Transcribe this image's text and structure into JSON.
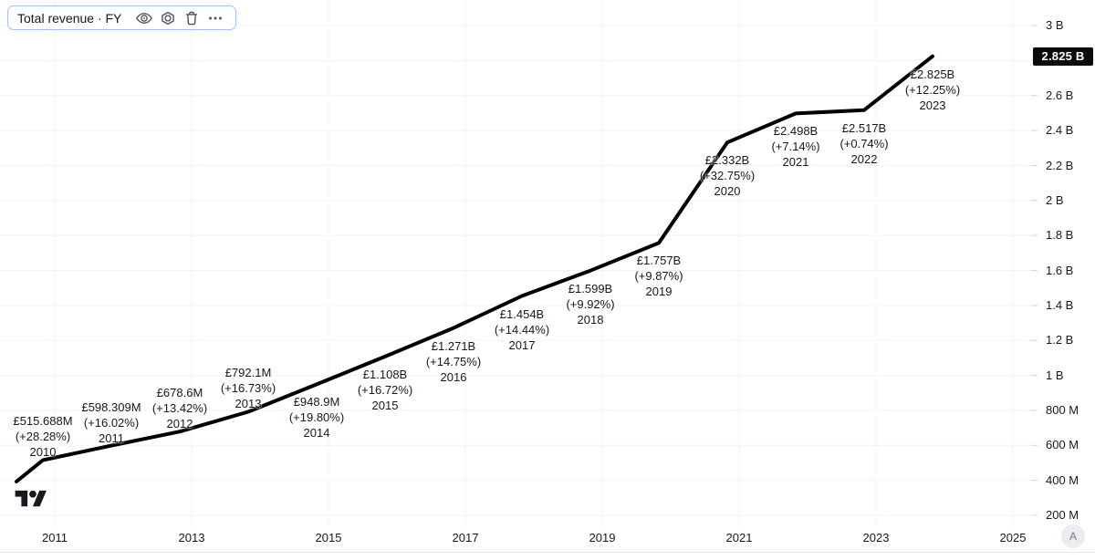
{
  "legend": {
    "title": "Total revenue · FY",
    "icons": [
      "eye-icon",
      "settings-icon",
      "trash-icon",
      "more-icon"
    ]
  },
  "price_badge": {
    "text": "2.825 B"
  },
  "footer": {
    "auto_scale_label": "A"
  },
  "colors": {
    "line": "#000000",
    "grid": "#f0f3fa",
    "axis_text": "#131722",
    "label_text": "#131722",
    "legend_border": "#a9bcfa",
    "icon": "#50535e",
    "badge_bg": "#0b0b0d",
    "badge_text": "#ffffff",
    "logo": "#16191f"
  },
  "chart_data": {
    "type": "line",
    "title": "Total revenue · FY",
    "currency": "GBP",
    "legend_position": "top-left",
    "grid": true,
    "y_axis": {
      "side": "right",
      "range_m": [
        200,
        3000
      ],
      "grid_step_m": 200,
      "ticks": [
        {
          "m": 3000,
          "label": "3 B"
        },
        {
          "m": 2600,
          "label": "2.6 B"
        },
        {
          "m": 2400,
          "label": "2.4 B"
        },
        {
          "m": 2200,
          "label": "2.2 B"
        },
        {
          "m": 2000,
          "label": "2 B"
        },
        {
          "m": 1800,
          "label": "1.8 B"
        },
        {
          "m": 1600,
          "label": "1.6 B"
        },
        {
          "m": 1400,
          "label": "1.4 B"
        },
        {
          "m": 1200,
          "label": "1.2 B"
        },
        {
          "m": 1000,
          "label": "1 B"
        },
        {
          "m": 800,
          "label": "800 M"
        },
        {
          "m": 600,
          "label": "600 M"
        },
        {
          "m": 400,
          "label": "400 M"
        },
        {
          "m": 200,
          "label": "200 M"
        }
      ],
      "last_price_m": 2825
    },
    "x_axis": {
      "ticks": [
        {
          "year": 2011,
          "label": "2011"
        },
        {
          "year": 2013,
          "label": "2013"
        },
        {
          "year": 2015,
          "label": "2015"
        },
        {
          "year": 2017,
          "label": "2017"
        },
        {
          "year": 2019,
          "label": "2019"
        },
        {
          "year": 2021,
          "label": "2021"
        },
        {
          "year": 2023,
          "label": "2023"
        },
        {
          "year": 2025,
          "label": "2025"
        }
      ]
    },
    "series": [
      {
        "name": "Total revenue",
        "points": [
          {
            "year": 2010,
            "value_m": 515.688,
            "value_label": "£515.688M",
            "pct_label": "(+28.28%)",
            "year_label": "2010",
            "label_side": "above"
          },
          {
            "year": 2011,
            "value_m": 598.309,
            "value_label": "£598.309M",
            "pct_label": "(+16.02%)",
            "year_label": "2011",
            "label_side": "above"
          },
          {
            "year": 2012,
            "value_m": 678.6,
            "value_label": "£678.6M",
            "pct_label": "(+13.42%)",
            "year_label": "2012",
            "label_side": "above"
          },
          {
            "year": 2013,
            "value_m": 792.1,
            "value_label": "£792.1M",
            "pct_label": "(+16.73%)",
            "year_label": "2013",
            "label_side": "above"
          },
          {
            "year": 2014,
            "value_m": 948.9,
            "value_label": "£948.9M",
            "pct_label": "(+19.80%)",
            "year_label": "2014",
            "label_side": "below"
          },
          {
            "year": 2015,
            "value_m": 1108,
            "value_label": "£1.108B",
            "pct_label": "(+16.72%)",
            "year_label": "2015",
            "label_side": "below"
          },
          {
            "year": 2016,
            "value_m": 1271,
            "value_label": "£1.271B",
            "pct_label": "(+14.75%)",
            "year_label": "2016",
            "label_side": "below"
          },
          {
            "year": 2017,
            "value_m": 1454,
            "value_label": "£1.454B",
            "pct_label": "(+14.44%)",
            "year_label": "2017",
            "label_side": "below"
          },
          {
            "year": 2018,
            "value_m": 1599,
            "value_label": "£1.599B",
            "pct_label": "(+9.92%)",
            "year_label": "2018",
            "label_side": "below"
          },
          {
            "year": 2019,
            "value_m": 1757,
            "value_label": "£1.757B",
            "pct_label": "(+9.87%)",
            "year_label": "2019",
            "label_side": "below"
          },
          {
            "year": 2020,
            "value_m": 2332,
            "value_label": "£2.332B",
            "pct_label": "(+32.75%)",
            "year_label": "2020",
            "label_side": "below"
          },
          {
            "year": 2021,
            "value_m": 2498,
            "value_label": "£2.498B",
            "pct_label": "(+7.14%)",
            "year_label": "2021",
            "label_side": "below"
          },
          {
            "year": 2022,
            "value_m": 2517,
            "value_label": "£2.517B",
            "pct_label": "(+0.74%)",
            "year_label": "2022",
            "label_side": "below"
          },
          {
            "year": 2023,
            "value_m": 2825,
            "value_label": "£2.825B",
            "pct_label": "(+12.25%)",
            "year_label": "2023",
            "label_side": "below"
          }
        ],
        "line_starts_offscreen": true
      }
    ]
  }
}
